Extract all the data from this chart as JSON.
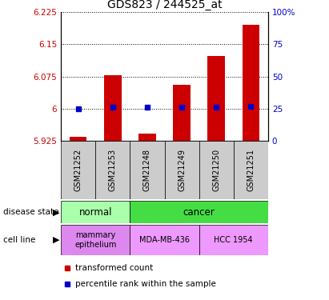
{
  "title": "GDS823 / 244525_at",
  "samples": [
    "GSM21252",
    "GSM21253",
    "GSM21248",
    "GSM21249",
    "GSM21250",
    "GSM21251"
  ],
  "red_values": [
    5.935,
    6.078,
    5.942,
    6.055,
    6.122,
    6.195
  ],
  "blue_values": [
    6.0,
    6.003,
    6.003,
    6.003,
    6.003,
    6.005
  ],
  "ylim_left": [
    5.925,
    6.225
  ],
  "yticks_left": [
    5.925,
    6.0,
    6.075,
    6.15,
    6.225
  ],
  "ytick_labels_left": [
    "5.925",
    "6",
    "6.075",
    "6.15",
    "6.225"
  ],
  "yticks_right": [
    0,
    25,
    50,
    75,
    100
  ],
  "ytick_labels_right": [
    "0",
    "25",
    "50",
    "75",
    "100%"
  ],
  "ylim_right": [
    0,
    100
  ],
  "grid_lines_left": [
    5.925,
    6.0,
    6.075,
    6.15,
    6.225
  ],
  "color_red": "#cc0000",
  "color_blue": "#0000cc",
  "color_normal_bg": "#aaffaa",
  "color_cancer_bg": "#44dd44",
  "color_mammary_bg": "#dd88ee",
  "color_cell_bg": "#ee99ff",
  "color_sample_bg": "#cccccc",
  "bar_bottom": 5.925,
  "bar_width": 0.5,
  "fig_width": 4.11,
  "fig_height": 3.75,
  "fig_dpi": 100
}
